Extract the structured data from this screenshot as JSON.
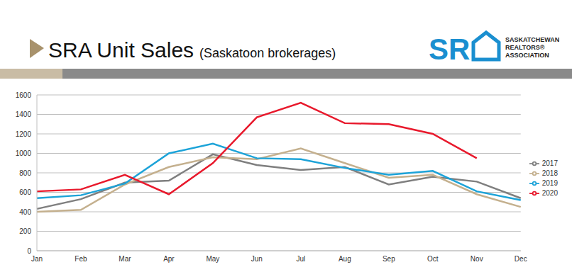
{
  "chart_data": {
    "type": "line",
    "title": "SRA Unit Sales",
    "subtitle": "(Saskatoon brokerages)",
    "annotations": [
      "SR",
      "SASKATCHEWAN",
      "REALTORS®",
      "ASSOCIATION"
    ],
    "categories": [
      "Jan",
      "Feb",
      "Mar",
      "Apr",
      "May",
      "Jun",
      "Jul",
      "Aug",
      "Sep",
      "Oct",
      "Nov",
      "Dec"
    ],
    "series": [
      {
        "name": "2017",
        "color": "#7f7f7f",
        "values": [
          430,
          530,
          700,
          720,
          990,
          880,
          830,
          860,
          680,
          760,
          710,
          540
        ]
      },
      {
        "name": "2018",
        "color": "#c4b08e",
        "values": [
          400,
          420,
          680,
          860,
          960,
          940,
          1050,
          900,
          750,
          780,
          580,
          450
        ]
      },
      {
        "name": "2019",
        "color": "#1ca3d8",
        "values": [
          540,
          570,
          690,
          1000,
          1100,
          950,
          940,
          850,
          780,
          820,
          610,
          520
        ]
      },
      {
        "name": "2020",
        "color": "#e8192c",
        "values": [
          610,
          630,
          780,
          580,
          900,
          1370,
          1520,
          1310,
          1300,
          1200,
          950,
          null
        ]
      }
    ],
    "ylim": [
      0,
      1600
    ],
    "yticks": [
      0,
      200,
      400,
      600,
      800,
      1000,
      1200,
      1400,
      1600
    ],
    "grid": true,
    "legend": "right"
  }
}
